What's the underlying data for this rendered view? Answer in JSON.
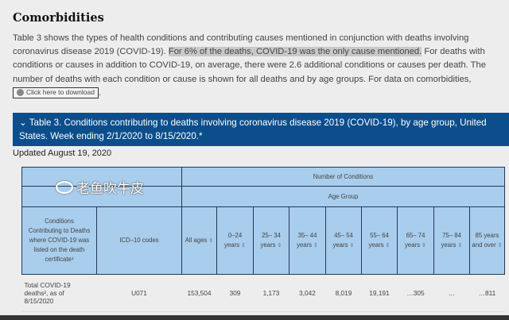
{
  "heading": "Comorbidities",
  "paragraph": {
    "part1": "Table 3 shows the types of health conditions and contributing causes mentioned in conjunction with deaths involving coronavirus disease 2019 (COVID-19). ",
    "highlight": "For 6% of the deaths, COVID-19 was the only cause mentioned.",
    "part2": " For deaths with conditions or causes in addition to COVID-19, on average, there were 2.6 additional conditions or causes per death. The number of deaths with each condition or cause is shown for all deaths and by age groups. For data on comorbidities, ",
    "download_label": "Click here to download",
    "end": "."
  },
  "banner": {
    "icon": "chevron-down",
    "title": "Table 3. Conditions contributing to deaths involving coronavirus disease 2019 (COVID-19), by age group, United States. Week ending 2/1/2020 to 8/15/2020.*"
  },
  "updated": "Updated August 19, 2020",
  "table": {
    "header1": "Number of Conditions",
    "header2": "Age Group",
    "col_condition": "Conditions Contributing to Deaths where COVID-19 was listed on the death certificate¹",
    "col_icd": "ICD–10 codes",
    "age_columns": [
      "All ages",
      "0–24 years",
      "25– 34 years",
      "35– 44 years",
      "45– 54 years",
      "55– 64 years",
      "65– 74 years",
      "75– 84 years",
      "85 years and over"
    ],
    "rows": [
      {
        "condition": "Total COVID-19 deaths², as of 8/15/2020",
        "icd": "U071",
        "values": [
          "153,504",
          "309",
          "1,173",
          "3,042",
          "8,019",
          "19,191",
          "…305",
          "…",
          "…811"
        ]
      }
    ]
  },
  "watermark": "老鱼吹牛皮"
}
